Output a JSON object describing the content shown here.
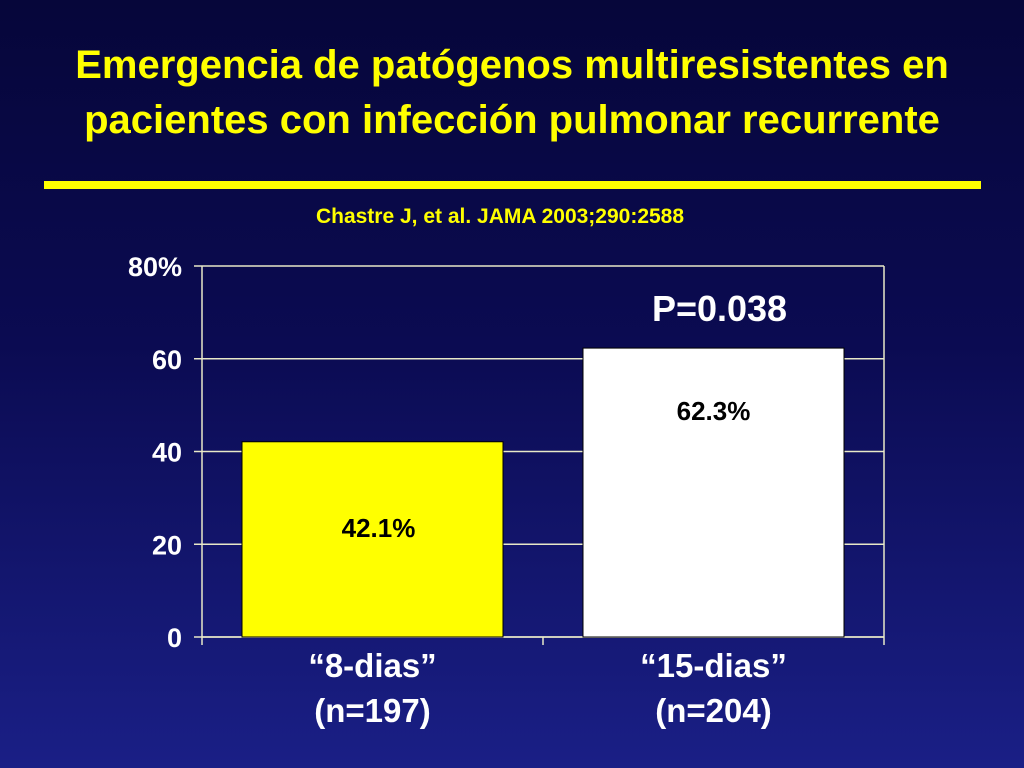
{
  "slide": {
    "title_lines": [
      "Emergencia de patógenos multiresistentes en",
      "pacientes con infección pulmonar recurrente"
    ],
    "citation": "Chastre J, et al. JAMA 2003;290:2588",
    "accent_color": "#ffff00",
    "background_color": "#0b0b52"
  },
  "chart_data": {
    "type": "bar",
    "categories": [
      [
        "“8-dias”",
        "(n=197)"
      ],
      [
        "“15-dias”",
        "(n=204)"
      ]
    ],
    "values": [
      42.1,
      62.3
    ],
    "data_labels": [
      "42.1%",
      "62.3%"
    ],
    "bar_colors": [
      "#ffff00",
      "#ffffff"
    ],
    "ylim": [
      0,
      80
    ],
    "yticks": [
      0,
      20,
      40,
      60,
      80
    ],
    "ytick_labels": [
      "0",
      "20",
      "40",
      "60",
      "80%"
    ],
    "grid": true,
    "annotation": "P=0.038",
    "xlabel": "",
    "ylabel": ""
  }
}
